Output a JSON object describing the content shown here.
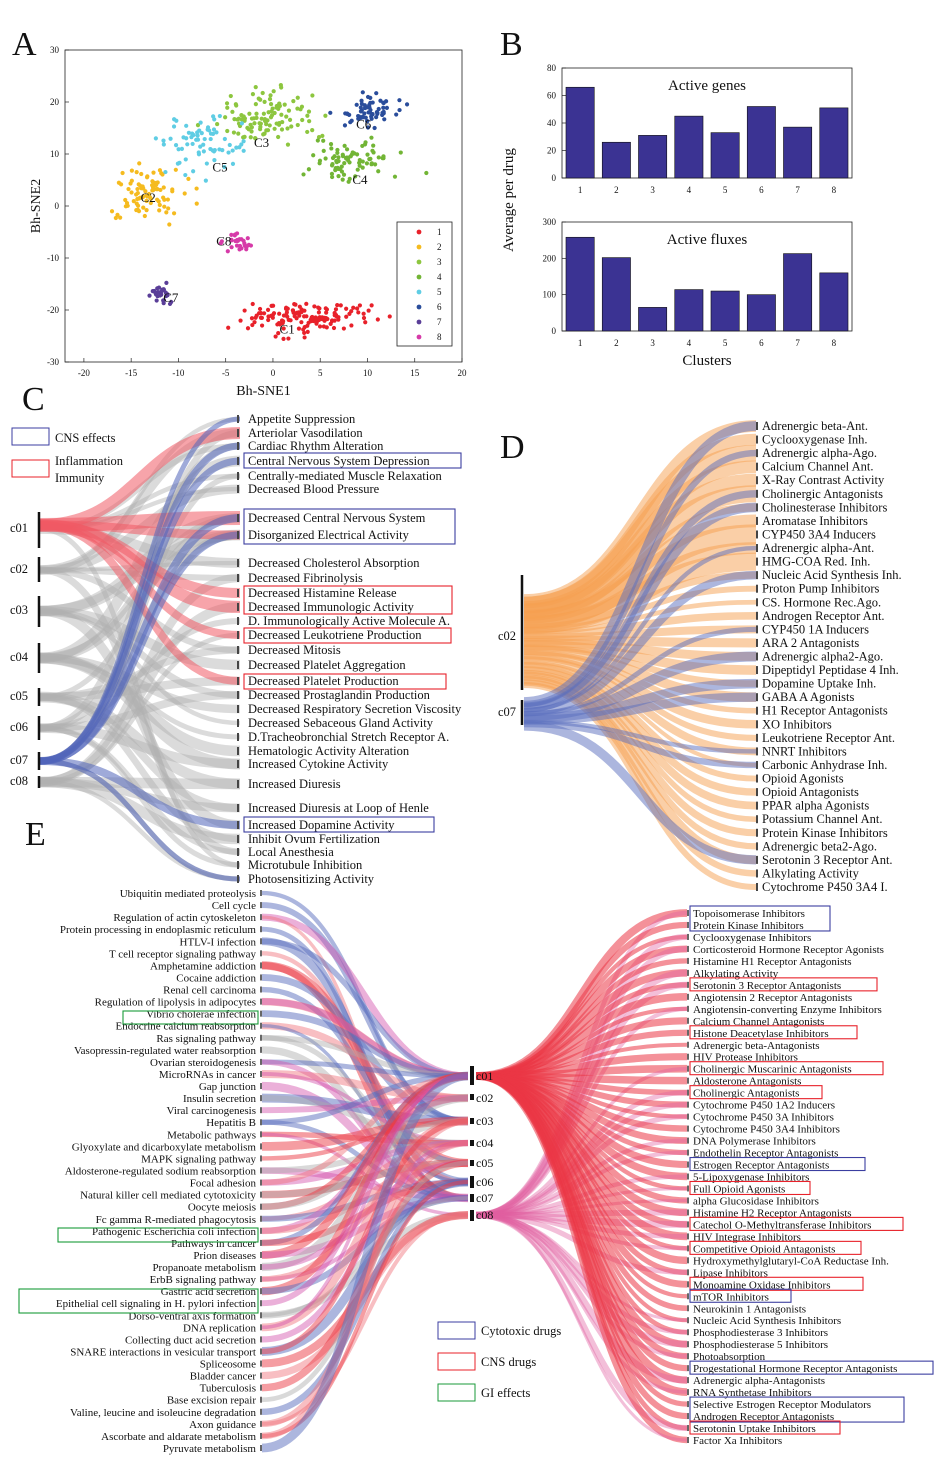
{
  "panel_labels": {
    "a": "A",
    "b": "B",
    "c": "C",
    "d": "D",
    "e": "E"
  },
  "chart_data": [
    {
      "panel": "A",
      "type": "scatter",
      "xlabel": "Bh-SNE1",
      "ylabel": "Bh-SNE2",
      "xlim": [
        -22,
        20
      ],
      "ylim": [
        -30,
        30
      ],
      "xticks": [
        -20,
        -15,
        -10,
        -5,
        0,
        5,
        10,
        15,
        20
      ],
      "yticks": [
        -30,
        -20,
        -10,
        0,
        10,
        20,
        30
      ],
      "legend": [
        "1",
        "2",
        "3",
        "4",
        "5",
        "6",
        "7",
        "8"
      ],
      "legend_position": "bottom-right",
      "colors": [
        "#e8212a",
        "#f5bb1f",
        "#8dc63f",
        "#72b535",
        "#5fcde4",
        "#2a4d9b",
        "#5a3e98",
        "#d63aa8"
      ],
      "annotations": [
        {
          "text": "C1",
          "x": 1.5,
          "y": -24.5
        },
        {
          "text": "C2",
          "x": -13.2,
          "y": 0.8
        },
        {
          "text": "C3",
          "x": -1.2,
          "y": 11.3
        },
        {
          "text": "C4",
          "x": 9.2,
          "y": 4.2
        },
        {
          "text": "C5",
          "x": -5.6,
          "y": 6.6
        },
        {
          "text": "C6",
          "x": 9.6,
          "y": 14.9
        },
        {
          "text": "C7",
          "x": -10.8,
          "y": -18.5
        },
        {
          "text": "C8",
          "x": -5.2,
          "y": -7.6
        }
      ],
      "clusters": [
        {
          "name": "1",
          "cx": 3.5,
          "cy": -21.5,
          "sx": 6,
          "sy": 2.6,
          "n": 140
        },
        {
          "name": "2",
          "cx": -13.5,
          "cy": 2.5,
          "sx": 3.2,
          "sy": 5,
          "n": 90
        },
        {
          "name": "3",
          "cx": -0.5,
          "cy": 17,
          "sx": 4.5,
          "sy": 4.5,
          "n": 110
        },
        {
          "name": "4",
          "cx": 8.5,
          "cy": 9,
          "sx": 4.5,
          "sy": 3.5,
          "n": 80
        },
        {
          "name": "5",
          "cx": -7,
          "cy": 12,
          "sx": 4,
          "sy": 5,
          "n": 70
        },
        {
          "name": "6",
          "cx": 10,
          "cy": 18,
          "sx": 3,
          "sy": 3,
          "n": 65
        },
        {
          "name": "7",
          "cx": -12,
          "cy": -17,
          "sx": 1.1,
          "sy": 1.7,
          "n": 28
        },
        {
          "name": "8",
          "cx": -3.5,
          "cy": -7,
          "sx": 1.6,
          "sy": 1.5,
          "n": 30
        }
      ]
    },
    {
      "panel": "B-top",
      "type": "bar",
      "title": "Active genes",
      "categories": [
        "1",
        "2",
        "3",
        "4",
        "5",
        "6",
        "7",
        "8"
      ],
      "values": [
        66,
        26,
        31,
        45,
        33,
        52,
        37,
        51
      ],
      "ylim": [
        0,
        80
      ],
      "yticks": [
        0,
        20,
        40,
        60,
        80
      ],
      "color": "#3b3393"
    },
    {
      "panel": "B-bottom",
      "type": "bar",
      "title": "Active fluxes",
      "categories": [
        "1",
        "2",
        "3",
        "4",
        "5",
        "6",
        "7",
        "8"
      ],
      "values": [
        258,
        202,
        65,
        114,
        110,
        100,
        213,
        160
      ],
      "ylim": [
        0,
        300
      ],
      "yticks": [
        0,
        100,
        200,
        300
      ],
      "color": "#3b3393",
      "xlabel": "Clusters",
      "ylabel": "Average per drug"
    }
  ],
  "panel_c": {
    "legend": {
      "cns": "CNS effects",
      "inflammation_line1": "Inflammation",
      "inflammation_line2": "Immunity"
    },
    "clusters": [
      "c01",
      "c02",
      "c03",
      "c04",
      "c05",
      "c06",
      "c07",
      "c08"
    ],
    "effects": [
      "Appetite Suppression",
      "Arteriolar Vasodilation",
      "Cardiac Rhythm Alteration",
      "Central Nervous System Depression",
      "Centrally-mediated Muscle Relaxation",
      "Decreased Blood Pressure",
      "Decreased Central Nervous System",
      "Disorganized Electrical Activity",
      "Decreased Cholesterol Absorption",
      "Decreased Fibrinolysis",
      "Decreased Histamine Release",
      "Decreased Immunologic Activity",
      "D. Immunologically Active Molecule A.",
      "Decreased Leukotriene Production",
      "Decreased Mitosis",
      "Decreased Platelet Aggregation",
      "Decreased Platelet Production",
      "Decreased Prostaglandin Production",
      "Decreased Respiratory Secretion Viscosity",
      "Decreased Sebaceous Gland Activity",
      "D.Tracheobronchial Stretch Receptor A.",
      "Hematologic Activity Alteration",
      "Increased Cytokine Activity",
      "Increased Diuresis",
      "Increased Diuresis at Loop of Henle",
      "Increased Dopamine Activity",
      "Inhibit Ovum Fertilization",
      "Local Anesthesia",
      "Microtubule Inhibition",
      "Photosensitizing Activity"
    ]
  },
  "panel_d": {
    "clusters": [
      "c02",
      "c07"
    ],
    "targets": [
      "Adrenergic beta-Ant.",
      "Cyclooxygenase Inh.",
      "Adrenergic alpha-Ago.",
      "Calcium Channel Ant.",
      "X-Ray Contrast Activity",
      "Cholinergic Antagonists",
      "Cholinesterase Inhibitors",
      "Aromatase Inhibitors",
      "CYP450 3A4 Inducers",
      "Adrenergic alpha-Ant.",
      "HMG-COA Red. Inh.",
      "Nucleic Acid Synthesis Inh.",
      "Proton Pump Inhibitors",
      "CS. Hormone Rec.Ago.",
      "Androgen Receptor Ant.",
      "CYP450 1A Inducers",
      "ARA 2 Antagonists",
      "Adrenergic alpha2-Ago.",
      "Dipeptidyl Peptidase 4 Inh.",
      "Dopamine Uptake Inh.",
      "GABA A Agonists",
      "H1 Receptor Antagonists",
      "XO Inhibitors",
      "Leukotriene Receptor Ant.",
      "NNRT Inhibitors",
      "Carbonic Anhydrase Inh.",
      "Opioid Agonists",
      "Opioid Antagonists",
      "PPAR alpha Agonists",
      "Potassium Channel Ant.",
      "Protein Kinase Inhibitors",
      "Adrenergic beta2-Ago.",
      "Serotonin 3 Receptor Ant.",
      "Alkylating Activity",
      "Cytochrome P450 3A4 I."
    ]
  },
  "panel_e": {
    "legend": {
      "cytotoxic": "Cytotoxic drugs",
      "cns": "CNS drugs",
      "gi": "GI effects"
    },
    "clusters": [
      "c01",
      "c02",
      "c03",
      "c04",
      "c05",
      "c06",
      "c07",
      "c08"
    ],
    "pathways": [
      "Ubiquitin mediated proteolysis",
      "Cell cycle",
      "Regulation of actin cytoskeleton",
      "Protein processing in endoplasmic reticulum",
      "HTLV-I infection",
      "T cell receptor signaling pathway",
      "Amphetamine addiction",
      "Cocaine addiction",
      "Renal cell carcinoma",
      "Regulation of lipolysis in adipocytes",
      "Vibrio cholerae infection",
      "Endocrine calcium reabsorption",
      "Ras signaling pathway",
      "Vasopressin-regulated water reabsorption",
      "Ovarian steroidogenesis",
      "MicroRNAs in cancer",
      "Gap junction",
      "Insulin secretion",
      "Viral carcinogenesis",
      "Hepatitis B",
      "Metabolic pathways",
      "Glyoxylate and dicarboxylate metabolism",
      "MAPK signaling pathway",
      "Aldosterone-regulated sodium reabsorption",
      "Focal adhesion",
      "Natural killer cell mediated cytotoxicity",
      "Oocyte meiosis",
      "Fc gamma R-mediated phagocytosis",
      "Pathogenic Escherichia coli infection",
      "Pathways in cancer",
      "Prion diseases",
      "Propanoate metabolism",
      "ErbB signaling pathway",
      "Gastric acid secretion",
      "Epithelial cell signaling in H. pylori infection",
      "Dorso-ventral axis formation",
      "DNA replication",
      "Collecting duct acid secretion",
      "SNARE interactions in vesicular transport",
      "Spliceosome",
      "Bladder cancer",
      "Tuberculosis",
      "Base excision repair",
      "Valine, leucine and isoleucine degradation",
      "Axon guidance",
      "Ascorbate and aldarate metabolism",
      "Pyruvate metabolism"
    ],
    "targets": [
      "Topoisomerase Inhibitors",
      "Protein Kinase Inhibitors",
      "Cyclooxygenase Inhibitors",
      "Corticosteroid Hormone Receptor Agonists",
      "Histamine H1 Receptor Antagonists",
      "Alkylating Activity",
      "Serotonin 3 Receptor Antagonists",
      "Angiotensin 2 Receptor Antagonists",
      "Angiotensin-converting Enzyme Inhibitors",
      "Calcium Channel Antagonists",
      "Histone Deacetylase Inhibitors",
      "Adrenergic beta-Antagonists",
      "HIV Protease Inhibitors",
      "Cholinergic Muscarinic Antagonists",
      "Aldosterone Antagonists",
      "Cholinergic Antagonists",
      "Cytochrome P450 1A2 Inducers",
      "Cytochrome P450 3A Inhibitors",
      "Cytochrome P450 3A4 Inhibitors",
      "DNA Polymerase Inhibitors",
      "Endothelin Receptor Antagonists",
      "Estrogen Receptor Antagonists",
      "5-Lipoxygenase Inhibitors",
      "Full Opioid Agonists",
      "alpha Glucosidase Inhibitors",
      "Histamine H2 Receptor Antagonists",
      "Catechol O-Methyltransferase Inhibitors",
      "HIV Integrase Inhibitors",
      "Competitive Opioid Antagonists",
      "Hydroxymethylglutaryl-CoA Reductase Inh.",
      "Lipase Inhibitors",
      "Monoamine Oxidase Inhibitors",
      "mTOR Inhibitors",
      "Neurokinin 1 Antagonists",
      "Nucleic Acid Synthesis Inhibitors",
      "Phosphodiesterase 3 Inhibitors",
      "Phosphodiesterase 5 Inhibitors",
      "Photoabsorption",
      "Progestational Hormone Receptor Antagonists",
      "Adrenergic alpha-Antagonists",
      "RNA Synthetase Inhibitors",
      "Selective Estrogen Receptor Modulators",
      "Androgen Receptor Antagonists",
      "Serotonin Uptake Inhibitors",
      "Factor Xa Inhibitors"
    ]
  }
}
